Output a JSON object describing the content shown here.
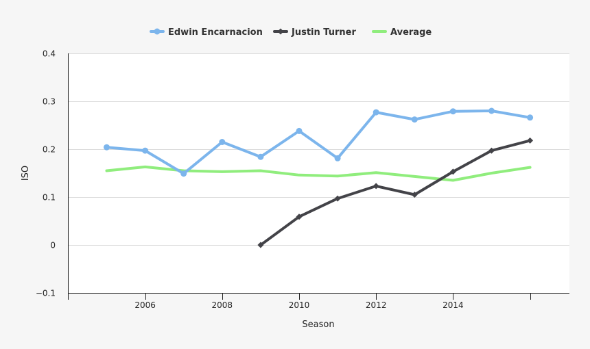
{
  "chart_data": {
    "type": "line",
    "title": "",
    "xlabel": "Season",
    "ylabel": "ISO",
    "xlim": [
      2004,
      2017
    ],
    "ylim": [
      -0.1,
      0.4
    ],
    "x_ticks": [
      2006,
      2008,
      2010,
      2012,
      2014
    ],
    "y_ticks": [
      -0.1,
      0,
      0.1,
      0.2,
      0.3,
      0.4
    ],
    "y_tick_labels": [
      "−0.1",
      "0",
      "0.1",
      "0.2",
      "0.3",
      "0.4"
    ],
    "grid": "horizontal",
    "legend_position": "top-center",
    "series": [
      {
        "name": "Edwin Encarnacion",
        "color": "#7cb5ec",
        "marker": "circle",
        "x": [
          2005,
          2006,
          2007,
          2008,
          2009,
          2010,
          2011,
          2012,
          2013,
          2014,
          2015,
          2016
        ],
        "values": [
          0.204,
          0.197,
          0.149,
          0.215,
          0.184,
          0.238,
          0.181,
          0.277,
          0.262,
          0.279,
          0.28,
          0.266
        ]
      },
      {
        "name": "Justin Turner",
        "color": "#434348",
        "marker": "diamond",
        "x": [
          2009,
          2010,
          2011,
          2012,
          2013,
          2014,
          2015,
          2016
        ],
        "values": [
          0.0,
          0.059,
          0.097,
          0.123,
          0.105,
          0.153,
          0.197,
          0.218
        ]
      },
      {
        "name": "Average",
        "color": "#90ed7d",
        "marker": "none",
        "x": [
          2005,
          2006,
          2007,
          2008,
          2009,
          2010,
          2011,
          2012,
          2013,
          2014,
          2015,
          2016
        ],
        "values": [
          0.155,
          0.163,
          0.155,
          0.153,
          0.155,
          0.146,
          0.144,
          0.151,
          0.143,
          0.135,
          0.15,
          0.162
        ]
      }
    ]
  }
}
